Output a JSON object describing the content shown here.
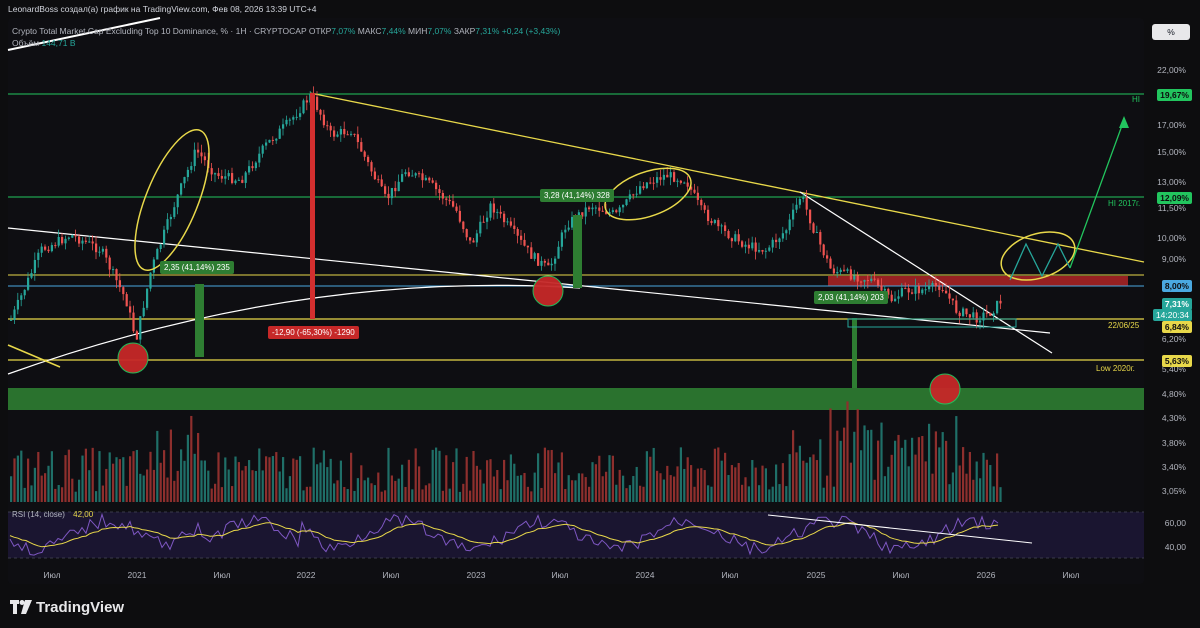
{
  "header": {
    "author": "LeonardBoss создал(а) график на TradingView.com, Фев 08, 2026 13:39 UTC+4",
    "symbol": "Crypto Total Market Cap Excluding Top 10 Dominance, % · 1H · CRYPTOCAP",
    "open_label": "ОТКР",
    "open_value": "7,07%",
    "high_label": "МАКС",
    "high_value": "7,44%",
    "low_label": "МИН",
    "low_value": "7,07%",
    "close_label": "ЗАКР",
    "close_value": "7,31%",
    "change": "+0,24 (+3,43%)",
    "volume_label": "Объём",
    "volume_value": "144,71 B"
  },
  "scale_button": "%",
  "price_axis": [
    "22,00%",
    "19,67%",
    "17,00%",
    "15,00%",
    "13,00%",
    "11,50%",
    "10,00%",
    "9,00%",
    "8,00%",
    "7,31%",
    "6,84%",
    "6,20%",
    "5,63%",
    "5,40%",
    "4,80%",
    "4,30%",
    "3,80%",
    "3,40%",
    "3,05%"
  ],
  "rsi_axis": [
    "60,00",
    "40,00"
  ],
  "price_tags": {
    "hi": "19,67%",
    "hi2017": "12,09%",
    "level8": "8,00%",
    "current": "7,31%",
    "countdown": "14:20:34",
    "level684": "6,84%",
    "low2020": "5,63%"
  },
  "chart_labels": {
    "hi": "HI",
    "hi2017": "HI 2017г.",
    "date_level": "22/06/25",
    "low2020": "Low 2020г.",
    "box1": "2,35 (41,14%) 235",
    "box2": "3,28 (41,14%) 328",
    "box3": "2,03 (41,14%) 203",
    "drop": "-12,90 (-65,30%) -1290"
  },
  "rsi": {
    "label": "RSI (14, close)",
    "value": "42,00"
  },
  "time_axis": [
    "Июл",
    "2021",
    "Июл",
    "2022",
    "Июл",
    "2023",
    "Июл",
    "2024",
    "Июл",
    "2025",
    "Июл",
    "2026",
    "Июл"
  ],
  "logo_text": "TradingView",
  "colors": {
    "up": "#26a69a",
    "down": "#ef5350",
    "yellow": "#e8d84a",
    "green_line": "#22c55e",
    "blue_line": "#4aa8e0",
    "rsi": "#7e57c2"
  }
}
